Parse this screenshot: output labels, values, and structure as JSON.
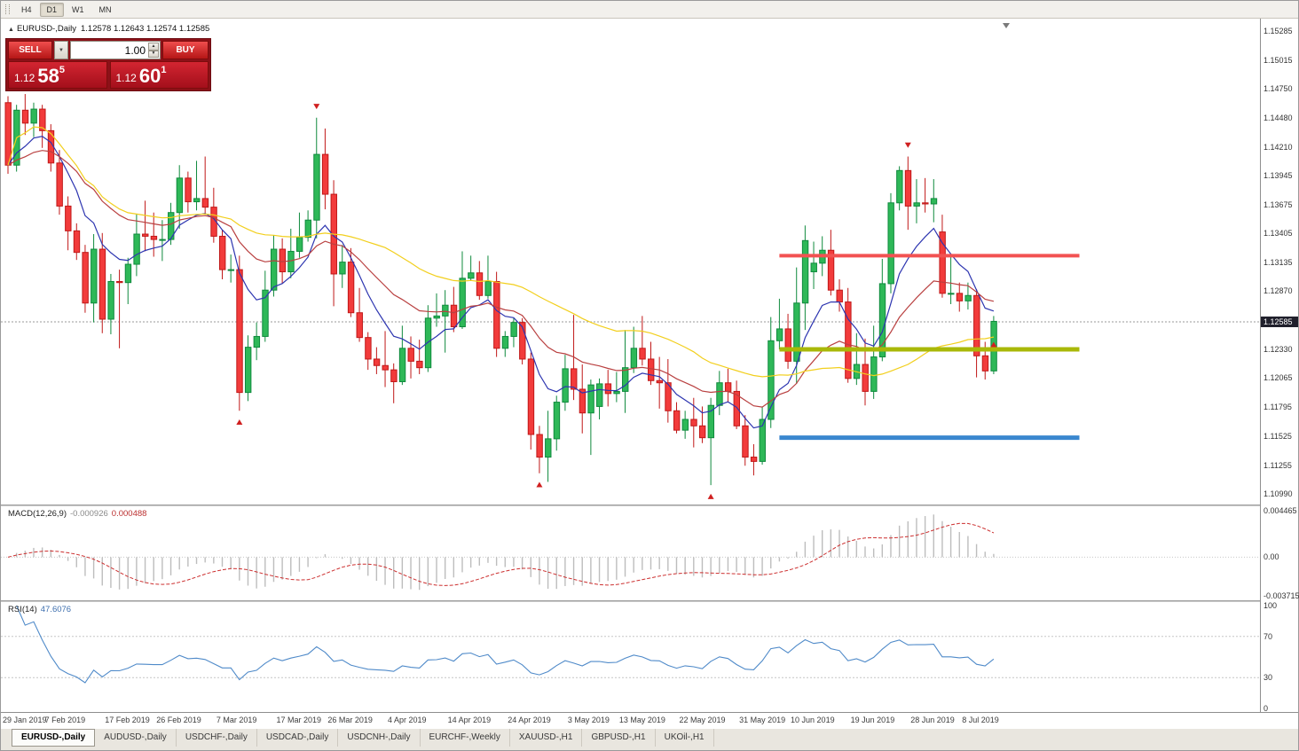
{
  "toolbar": {
    "timeframes": [
      {
        "label": "H4",
        "active": false
      },
      {
        "label": "D1",
        "active": true
      },
      {
        "label": "W1",
        "active": false
      },
      {
        "label": "MN",
        "active": false
      }
    ]
  },
  "chart_header": {
    "marker": "▲",
    "symbol": "EURUSD-,Daily",
    "ohlc": "1.12578 1.12643 1.12574 1.12585"
  },
  "trade_panel": {
    "sell_label": "SELL",
    "buy_label": "BUY",
    "volume": "1.00",
    "combo_arrow": "▼",
    "spin_up": "▲",
    "spin_down": "▼",
    "sell_price": {
      "base": "1.12",
      "pips": "58",
      "sup": "5"
    },
    "buy_price": {
      "base": "1.12",
      "pips": "60",
      "sup": "1"
    }
  },
  "price_scale": {
    "labels": [
      "1.15285",
      "1.15015",
      "1.14750",
      "1.14480",
      "1.14210",
      "1.13945",
      "1.13675",
      "1.13405",
      "1.13135",
      "1.12870",
      "1.12330",
      "1.12065",
      "1.11795",
      "1.11525",
      "1.11255",
      "1.10990"
    ],
    "current_price": "1.12585"
  },
  "indicators": {
    "macd_label": {
      "name": "MACD(12,26,9)",
      "main": "-0.000926",
      "signal": "0.000488",
      "scale_labels": [
        "0.004465",
        "0.00",
        "-0.003715"
      ]
    },
    "rsi_label": {
      "name": "RSI(14)",
      "value": "47.6076",
      "scale_labels": [
        "100",
        "70",
        "30",
        "0"
      ]
    }
  },
  "tabs": [
    {
      "label": "EURUSD-,Daily",
      "active": true
    },
    {
      "label": "AUDUSD-,Daily",
      "active": false
    },
    {
      "label": "USDCHF-,Daily",
      "active": false
    },
    {
      "label": "USDCAD-,Daily",
      "active": false
    },
    {
      "label": "USDCNH-,Daily",
      "active": false
    },
    {
      "label": "EURCHF-,Weekly",
      "active": false
    },
    {
      "label": "XAUUSD-,H1",
      "active": false
    },
    {
      "label": "GBPUSD-,H1",
      "active": false
    },
    {
      "label": "UKOil-,H1",
      "active": false
    }
  ],
  "chart_data": {
    "type": "candlestick",
    "title": "EURUSD-,Daily",
    "symbol": "EURUSD-",
    "timeframe": "Daily",
    "current_ohlc": {
      "open": 1.12578,
      "high": 1.12643,
      "low": 1.12574,
      "close": 1.12585
    },
    "y_axis_range": [
      1.1089,
      1.154
    ],
    "current_price_line": 1.12585,
    "colors": {
      "up": "#2eb858",
      "up_border": "#0f8a3d",
      "down": "#f23b3b",
      "down_border": "#c01818"
    },
    "candles": [
      [
        1.1462,
        1.1468,
        1.1396,
        1.1404
      ],
      [
        1.1404,
        1.146,
        1.1398,
        1.1455
      ],
      [
        1.1455,
        1.147,
        1.1432,
        1.1443
      ],
      [
        1.1443,
        1.1462,
        1.143,
        1.1456
      ],
      [
        1.1456,
        1.146,
        1.142,
        1.1436
      ],
      [
        1.1436,
        1.1442,
        1.1398,
        1.1406
      ],
      [
        1.1406,
        1.1418,
        1.1358,
        1.1366
      ],
      [
        1.1366,
        1.1375,
        1.1325,
        1.1343
      ],
      [
        1.1343,
        1.135,
        1.1316,
        1.1323
      ],
      [
        1.1323,
        1.133,
        1.1267,
        1.1276
      ],
      [
        1.1276,
        1.134,
        1.1258,
        1.1326
      ],
      [
        1.1326,
        1.1341,
        1.1248,
        1.1261
      ],
      [
        1.1261,
        1.1303,
        1.1247,
        1.1296
      ],
      [
        1.1296,
        1.1307,
        1.1234,
        1.1295
      ],
      [
        1.1295,
        1.1318,
        1.1275,
        1.1312
      ],
      [
        1.1312,
        1.1359,
        1.1301,
        1.134
      ],
      [
        1.134,
        1.1371,
        1.1324,
        1.1338
      ],
      [
        1.1338,
        1.136,
        1.1319,
        1.1335
      ],
      [
        1.1335,
        1.1353,
        1.1315,
        1.1335
      ],
      [
        1.1335,
        1.1369,
        1.133,
        1.136
      ],
      [
        1.136,
        1.1404,
        1.1345,
        1.1392
      ],
      [
        1.1392,
        1.1398,
        1.136,
        1.137
      ],
      [
        1.137,
        1.1408,
        1.1362,
        1.1373
      ],
      [
        1.1373,
        1.1412,
        1.1358,
        1.1365
      ],
      [
        1.1365,
        1.1383,
        1.1332,
        1.1338
      ],
      [
        1.1338,
        1.1344,
        1.1298,
        1.1307
      ],
      [
        1.1307,
        1.1321,
        1.1295,
        1.1307
      ],
      [
        1.1307,
        1.132,
        1.1176,
        1.1193
      ],
      [
        1.1193,
        1.1246,
        1.1185,
        1.1235
      ],
      [
        1.1235,
        1.1258,
        1.1223,
        1.1245
      ],
      [
        1.1245,
        1.1306,
        1.124,
        1.1288
      ],
      [
        1.1288,
        1.1339,
        1.1282,
        1.1326
      ],
      [
        1.1326,
        1.1336,
        1.1294,
        1.1305
      ],
      [
        1.1305,
        1.1345,
        1.1299,
        1.1324
      ],
      [
        1.1324,
        1.136,
        1.1318,
        1.1337
      ],
      [
        1.1337,
        1.1362,
        1.1333,
        1.1353
      ],
      [
        1.1353,
        1.1448,
        1.1336,
        1.1414
      ],
      [
        1.1414,
        1.1438,
        1.1363,
        1.1377
      ],
      [
        1.1377,
        1.139,
        1.1273,
        1.1303
      ],
      [
        1.1303,
        1.133,
        1.129,
        1.1314
      ],
      [
        1.1314,
        1.1327,
        1.1263,
        1.1267
      ],
      [
        1.1267,
        1.129,
        1.124,
        1.1244
      ],
      [
        1.1244,
        1.1249,
        1.1214,
        1.1224
      ],
      [
        1.1224,
        1.1235,
        1.121,
        1.1218
      ],
      [
        1.1218,
        1.125,
        1.1198,
        1.1214
      ],
      [
        1.1214,
        1.122,
        1.1183,
        1.1203
      ],
      [
        1.1203,
        1.1255,
        1.12,
        1.1234
      ],
      [
        1.1234,
        1.1245,
        1.1206,
        1.1222
      ],
      [
        1.1222,
        1.1242,
        1.121,
        1.1216
      ],
      [
        1.1216,
        1.1274,
        1.1212,
        1.1262
      ],
      [
        1.1262,
        1.1285,
        1.1254,
        1.1264
      ],
      [
        1.1264,
        1.1288,
        1.123,
        1.1274
      ],
      [
        1.1274,
        1.1291,
        1.1249,
        1.1254
      ],
      [
        1.1254,
        1.1324,
        1.1252,
        1.1299
      ],
      [
        1.1299,
        1.132,
        1.1297,
        1.1304
      ],
      [
        1.1304,
        1.1315,
        1.1279,
        1.1283
      ],
      [
        1.1283,
        1.132,
        1.128,
        1.1296
      ],
      [
        1.1296,
        1.1305,
        1.1226,
        1.1234
      ],
      [
        1.1234,
        1.125,
        1.1226,
        1.1245
      ],
      [
        1.1245,
        1.1262,
        1.1235,
        1.1258
      ],
      [
        1.1258,
        1.1262,
        1.1219,
        1.1224
      ],
      [
        1.1224,
        1.123,
        1.114,
        1.1154
      ],
      [
        1.1154,
        1.1162,
        1.1118,
        1.1133
      ],
      [
        1.1133,
        1.1176,
        1.111,
        1.115
      ],
      [
        1.115,
        1.119,
        1.1139,
        1.1184
      ],
      [
        1.1184,
        1.1228,
        1.1176,
        1.1215
      ],
      [
        1.1215,
        1.1265,
        1.1186,
        1.1196
      ],
      [
        1.1196,
        1.1219,
        1.1155,
        1.1174
      ],
      [
        1.1174,
        1.1205,
        1.1135,
        1.12
      ],
      [
        1.118,
        1.1206,
        1.1168,
        1.1201
      ],
      [
        1.1201,
        1.1214,
        1.118,
        1.1192
      ],
      [
        1.1192,
        1.1212,
        1.1184,
        1.1194
      ],
      [
        1.1194,
        1.1251,
        1.1174,
        1.1216
      ],
      [
        1.1216,
        1.1254,
        1.1211,
        1.1234
      ],
      [
        1.1234,
        1.1264,
        1.1218,
        1.1224
      ],
      [
        1.1224,
        1.124,
        1.12,
        1.1204
      ],
      [
        1.1204,
        1.1226,
        1.1178,
        1.1202
      ],
      [
        1.1202,
        1.1224,
        1.1165,
        1.1176
      ],
      [
        1.1176,
        1.1184,
        1.1155,
        1.1158
      ],
      [
        1.1158,
        1.1176,
        1.115,
        1.1168
      ],
      [
        1.1168,
        1.1188,
        1.1142,
        1.1162
      ],
      [
        1.1162,
        1.118,
        1.1146,
        1.1151
      ],
      [
        1.1151,
        1.1188,
        1.1107,
        1.1181
      ],
      [
        1.1181,
        1.1213,
        1.1172,
        1.1202
      ],
      [
        1.1202,
        1.1215,
        1.1184,
        1.1194
      ],
      [
        1.1194,
        1.1204,
        1.1159,
        1.1162
      ],
      [
        1.1162,
        1.1172,
        1.1125,
        1.1133
      ],
      [
        1.1133,
        1.1145,
        1.1116,
        1.1129
      ],
      [
        1.1129,
        1.118,
        1.1126,
        1.1168
      ],
      [
        1.1168,
        1.1263,
        1.116,
        1.1241
      ],
      [
        1.1241,
        1.128,
        1.1233,
        1.1252
      ],
      [
        1.1252,
        1.1266,
        1.1215,
        1.1222
      ],
      [
        1.1222,
        1.1309,
        1.1201,
        1.1276
      ],
      [
        1.1276,
        1.1348,
        1.1251,
        1.1334
      ],
      [
        1.1305,
        1.1333,
        1.1289,
        1.1313
      ],
      [
        1.1313,
        1.1338,
        1.1301,
        1.1325
      ],
      [
        1.1325,
        1.1344,
        1.1283,
        1.1288
      ],
      [
        1.1288,
        1.1298,
        1.1268,
        1.1277
      ],
      [
        1.1277,
        1.129,
        1.1202,
        1.1206
      ],
      [
        1.1206,
        1.1248,
        1.12,
        1.1219
      ],
      [
        1.1219,
        1.1243,
        1.1181,
        1.1194
      ],
      [
        1.1194,
        1.1255,
        1.1187,
        1.1226
      ],
      [
        1.1226,
        1.1317,
        1.1222,
        1.1294
      ],
      [
        1.1294,
        1.1378,
        1.1285,
        1.1369
      ],
      [
        1.1369,
        1.1403,
        1.1362,
        1.1399
      ],
      [
        1.1399,
        1.1412,
        1.1344,
        1.1366
      ],
      [
        1.1366,
        1.1391,
        1.135,
        1.1369
      ],
      [
        1.1369,
        1.1392,
        1.136,
        1.1368
      ],
      [
        1.1368,
        1.1391,
        1.1351,
        1.1373
      ],
      [
        1.1342,
        1.1358,
        1.1281,
        1.1285
      ],
      [
        1.1285,
        1.1322,
        1.1275,
        1.1285
      ],
      [
        1.1285,
        1.1295,
        1.1268,
        1.1278
      ],
      [
        1.1278,
        1.1295,
        1.127,
        1.1283
      ],
      [
        1.1283,
        1.1289,
        1.1207,
        1.1227
      ],
      [
        1.1227,
        1.124,
        1.1205,
        1.1213
      ],
      [
        1.1213,
        1.1264,
        1.121,
        1.1259
      ]
    ],
    "x_axis_labels": [
      {
        "label": "29 Jan 2019",
        "index": 0
      },
      {
        "label": "7 Feb 2019",
        "index": 7
      },
      {
        "label": "17 Feb 2019",
        "index": 14
      },
      {
        "label": "26 Feb 2019",
        "index": 20
      },
      {
        "label": "7 Mar 2019",
        "index": 27
      },
      {
        "label": "17 Mar 2019",
        "index": 34
      },
      {
        "label": "26 Mar 2019",
        "index": 40
      },
      {
        "label": "4 Apr 2019",
        "index": 47
      },
      {
        "label": "14 Apr 2019",
        "index": 54
      },
      {
        "label": "24 Apr 2019",
        "index": 61
      },
      {
        "label": "3 May 2019",
        "index": 68
      },
      {
        "label": "13 May 2019",
        "index": 74
      },
      {
        "label": "22 May 2019",
        "index": 81
      },
      {
        "label": "31 May 2019",
        "index": 88
      },
      {
        "label": "10 Jun 2019",
        "index": 94
      },
      {
        "label": "19 Jun 2019",
        "index": 101
      },
      {
        "label": "28 Jun 2019",
        "index": 108
      },
      {
        "label": "8 Jul 2019",
        "index": 114
      }
    ],
    "moving_averages": [
      {
        "type": "EMA",
        "period": 8,
        "color": "#2d35b0"
      },
      {
        "type": "EMA",
        "period": 21,
        "color": "#b94040"
      },
      {
        "type": "SMA",
        "period": 45,
        "color": "#f2cf1d"
      }
    ],
    "horizontal_lines": [
      {
        "name": "resistance-hline",
        "price": 1.132,
        "color": "#f25252",
        "width": 4,
        "from_index": 90,
        "to_index": 125
      },
      {
        "name": "support-hline",
        "price": 1.1233,
        "color": "#a9b808",
        "width": 5,
        "from_index": 90,
        "to_index": 125
      },
      {
        "name": "lower-support-hline",
        "price": 1.1151,
        "color": "#3a87cf",
        "width": 5,
        "from_index": 90,
        "to_index": 125
      }
    ],
    "arrow_markers": [
      {
        "index": 2,
        "dir": "down",
        "price": 1.1478
      },
      {
        "index": 27,
        "dir": "up",
        "price": 1.1168
      },
      {
        "index": 36,
        "dir": "down",
        "price": 1.1456
      },
      {
        "index": 62,
        "dir": "up",
        "price": 1.111
      },
      {
        "index": 82,
        "dir": "up",
        "price": 1.1099
      },
      {
        "index": 105,
        "dir": "down",
        "price": 1.142
      },
      {
        "index": 115,
        "dir": "up",
        "price": 1.124
      }
    ],
    "sub_charts": [
      {
        "type": "macd_histogram",
        "label": "MACD(12,26,9)",
        "main_value": -0.000926,
        "signal_value": 0.000488,
        "y_range": [
          -0.003715,
          0.004465
        ],
        "histogram_color": "#bdbdbd",
        "signal_color": "#cc2f2f"
      },
      {
        "type": "rsi_line",
        "label": "RSI(14)",
        "value": 47.6076,
        "y_range": [
          0,
          100
        ],
        "levels": [
          70,
          30
        ],
        "color": "#4f8ac9"
      }
    ]
  }
}
